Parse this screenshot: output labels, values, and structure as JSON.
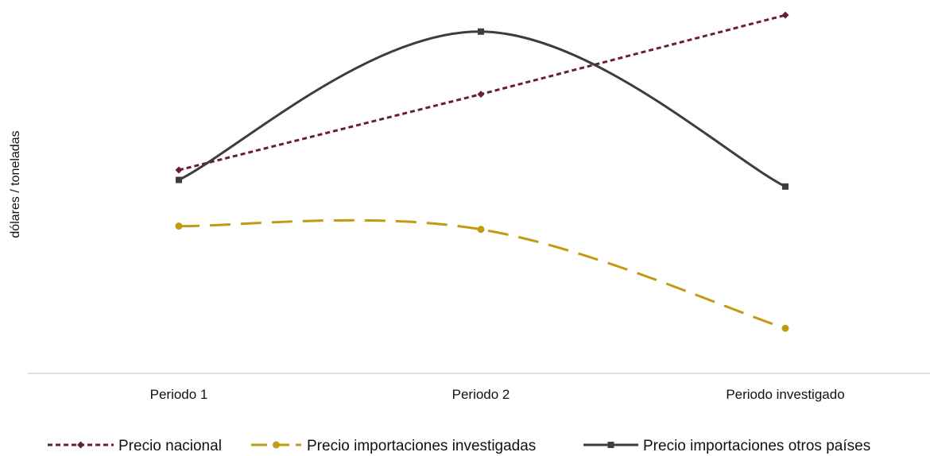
{
  "chart_data": {
    "type": "line",
    "title": "",
    "xlabel": "",
    "ylabel": "dólares / toneladas",
    "categories": [
      "Periodo 1",
      "Periodo 2",
      "Periodo investigado"
    ],
    "ylim": [
      0,
      100
    ],
    "grid": false,
    "y_tick_labels_shown": false,
    "legend_position": "bottom",
    "series": [
      {
        "name": "Precio nacional",
        "values": [
          53,
          76,
          100
        ],
        "color": "#6b1e32",
        "line_style": "dotted",
        "marker": "diamond",
        "smooth": false
      },
      {
        "name": "Precio importaciones investigadas",
        "values": [
          36,
          35,
          5
        ],
        "color": "#c39a12",
        "line_style": "long-dash",
        "marker": "circle",
        "smooth": true
      },
      {
        "name": "Precio importaciones otros países",
        "values": [
          50,
          95,
          48
        ],
        "color": "#3d3d3d",
        "line_style": "solid",
        "marker": "square",
        "smooth": true
      }
    ]
  }
}
